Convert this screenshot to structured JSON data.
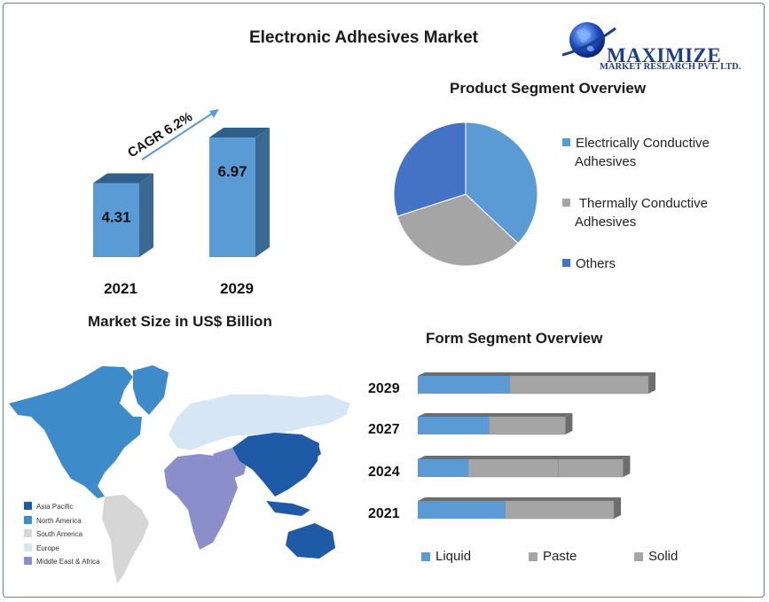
{
  "title": "Electronic Adhesives Market",
  "logo": {
    "name": "MAXIMIZE",
    "sub": "MARKET RESEARCH PVT. LTD."
  },
  "colors": {
    "blue": "#5b9bd5",
    "darkblue": "#4472c4",
    "gray": "#a5a5a5",
    "barside": "#3a6a93",
    "bartop": "#2f5f8a"
  },
  "chart_data": [
    {
      "type": "bar",
      "categories": [
        "2021",
        "2029"
      ],
      "values": [
        4.31,
        6.97
      ],
      "value_labels": [
        "4.31",
        "6.97"
      ],
      "annotation": "CAGR 6.2%",
      "xlabel": "Market Size in US$ Billion"
    },
    {
      "type": "pie",
      "title": "Product  Segment Overview",
      "labels": [
        "Electrically Conductive Adhesives",
        " Thermally Conductive Adhesives",
        "Others"
      ],
      "legend_lines": [
        [
          "Electrically Conductive",
          "Adhesives"
        ],
        [
          " Thermally Conductive",
          "Adhesives"
        ],
        [
          "Others"
        ]
      ],
      "values": [
        37,
        33,
        30
      ],
      "colors": [
        "#5b9bd5",
        "#a5a5a5",
        "#4472c4"
      ],
      "legend": "right"
    },
    {
      "type": "bar",
      "orientation": "horizontal-stacked",
      "title": "Form Segment  Overview",
      "categories": [
        "2029",
        "2027",
        "2024",
        "2021"
      ],
      "series": [
        {
          "name": "Liquid",
          "values": [
            40,
            31,
            22,
            38
          ],
          "color": "#5b9bd5"
        },
        {
          "name": "Paste",
          "values": [
            60,
            33,
            39,
            47
          ],
          "color": "#a5a5a5"
        },
        {
          "name": "Solid",
          "values": [
            0,
            0,
            28,
            0
          ],
          "color": "#a5a5a5"
        }
      ],
      "legend": "bottom"
    },
    {
      "type": "map",
      "legend": [
        {
          "name": "Asia Pacific",
          "color": "#1f5aa6"
        },
        {
          "name": "North America",
          "color": "#3d8cc9"
        },
        {
          "name": "South America",
          "color": "#d6d6d6"
        },
        {
          "name": "Europe",
          "color": "#d6e6f4"
        },
        {
          "name": "Middle East & Africa",
          "color": "#8a8fcc"
        }
      ]
    }
  ]
}
